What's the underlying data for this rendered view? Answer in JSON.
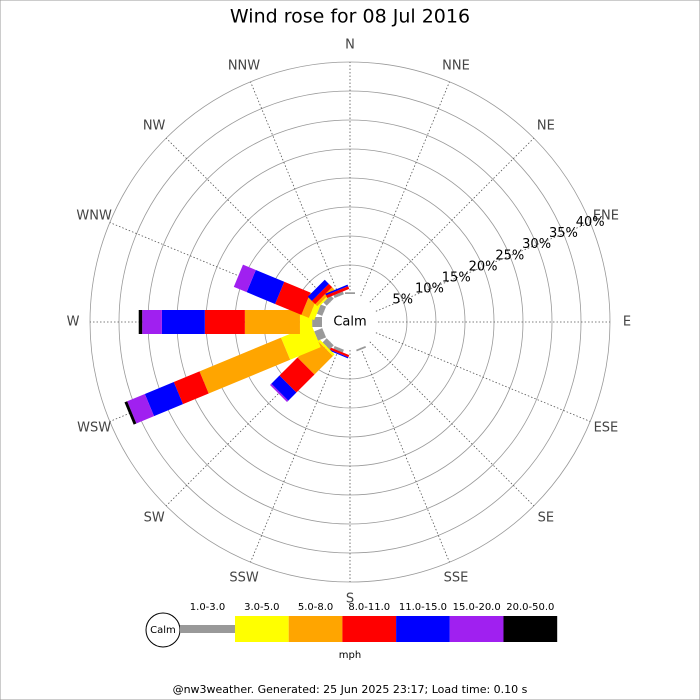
{
  "chart_data": {
    "type": "windrose",
    "title": "Wind rose for 08 Jul 2016",
    "directions": [
      "N",
      "NNE",
      "NE",
      "ENE",
      "E",
      "ESE",
      "SE",
      "SSE",
      "S",
      "SSW",
      "SW",
      "WSW",
      "W",
      "WNW",
      "NW",
      "NNW"
    ],
    "calm_label": "Calm",
    "rlim": [
      0,
      40
    ],
    "rticks": [
      {
        "value": 5,
        "label": "5%"
      },
      {
        "value": 10,
        "label": "10%"
      },
      {
        "value": 15,
        "label": "15%"
      },
      {
        "value": 20,
        "label": "20%"
      },
      {
        "value": 25,
        "label": "25%"
      },
      {
        "value": 30,
        "label": "30%"
      },
      {
        "value": 35,
        "label": "35%"
      },
      {
        "value": 40,
        "label": "40%"
      }
    ],
    "units": "mph",
    "series": [
      {
        "name": "1.0-3.0",
        "color": "#999999",
        "values": [
          0.3,
          0,
          0,
          0,
          0,
          0,
          0,
          0.3,
          0,
          0.5,
          1,
          1.5,
          1.7,
          1,
          0.8,
          0.5
        ]
      },
      {
        "name": "3.0-5.0",
        "color": "#ffff00",
        "values": [
          0,
          0,
          0,
          0,
          0,
          0,
          0,
          0,
          0,
          0,
          0.4,
          5.7,
          2.1,
          1,
          0.3,
          0
        ]
      },
      {
        "name": "5.0-8.0",
        "color": "#ffa500",
        "values": [
          0,
          0,
          0,
          0,
          0,
          0,
          0,
          0,
          0,
          0,
          4.5,
          15.2,
          9.5,
          1.4,
          0.5,
          0
        ]
      },
      {
        "name": "8.0-11.0",
        "color": "#ff0000",
        "values": [
          0,
          0,
          0,
          0,
          0,
          0,
          0,
          0,
          0,
          0.4,
          4.4,
          4.8,
          6.9,
          4.9,
          0.8,
          0.5
        ]
      },
      {
        "name": "11.0-15.0",
        "color": "#0000ff",
        "values": [
          0,
          0,
          0,
          0,
          0,
          0,
          0,
          0,
          0,
          0.2,
          2,
          5.4,
          7.4,
          5.3,
          1,
          0.3
        ]
      },
      {
        "name": "15.0-20.0",
        "color": "#a020f0",
        "values": [
          0,
          0,
          0,
          0,
          0,
          0,
          0,
          0,
          0,
          0,
          0.3,
          3.3,
          3.4,
          2.4,
          0,
          0
        ]
      },
      {
        "name": "20.0-50.0",
        "color": "#000000",
        "values": [
          0,
          0,
          0,
          0,
          0,
          0,
          0,
          0,
          0,
          0,
          0,
          0.5,
          0.6,
          0,
          0,
          0
        ]
      }
    ],
    "footer": "@nw3weather.  Generated: 25 Jun 2025 23:17; Load time: 0.10 s"
  }
}
